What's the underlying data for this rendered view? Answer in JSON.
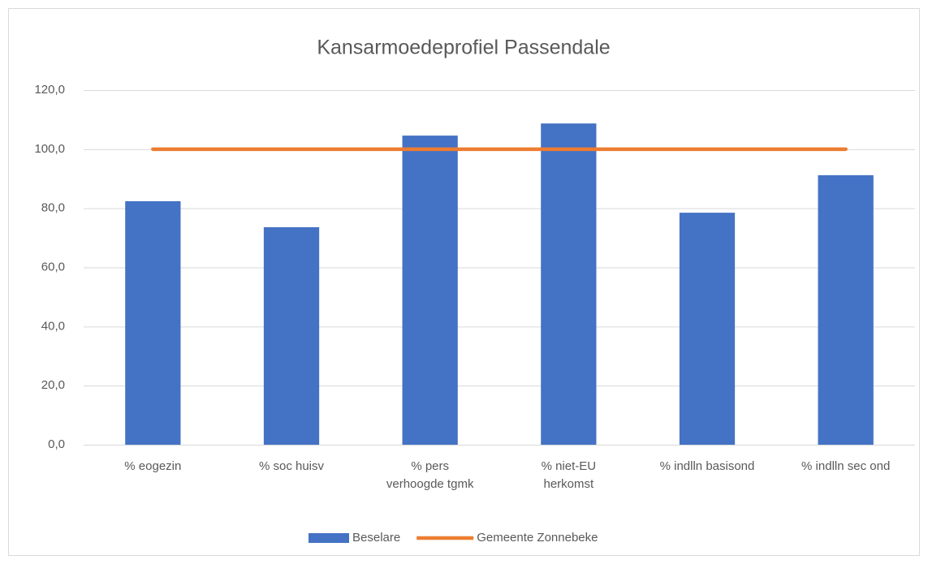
{
  "chart_data": {
    "type": "bar_line",
    "title": "Kansarmoedeprofiel Passendale",
    "categories": [
      "% eogezin",
      "% soc huisv",
      "% pers\nverhoogde tgmk",
      "% niet-EU\nherkomst",
      "% indlln basisond",
      "% indlln sec ond"
    ],
    "series": [
      {
        "name": "Beselare",
        "type": "bar",
        "color": "#4472c4",
        "values": [
          82.4,
          73.6,
          104.6,
          108.7,
          78.5,
          91.2
        ]
      },
      {
        "name": "Gemeente Zonnebeke",
        "type": "line",
        "color": "#ed7d31",
        "values": [
          100,
          100,
          100,
          100,
          100,
          100
        ]
      }
    ],
    "ylim": [
      0,
      120
    ],
    "yticks": [
      {
        "value": 0,
        "label": "0,0"
      },
      {
        "value": 20,
        "label": "20,0"
      },
      {
        "value": 40,
        "label": "40,0"
      },
      {
        "value": 60,
        "label": "60,0"
      },
      {
        "value": 80,
        "label": "80,0"
      },
      {
        "value": 100,
        "label": "100,0"
      },
      {
        "value": 120,
        "label": "120,0"
      }
    ],
    "grid": true,
    "legend": "bottom"
  }
}
